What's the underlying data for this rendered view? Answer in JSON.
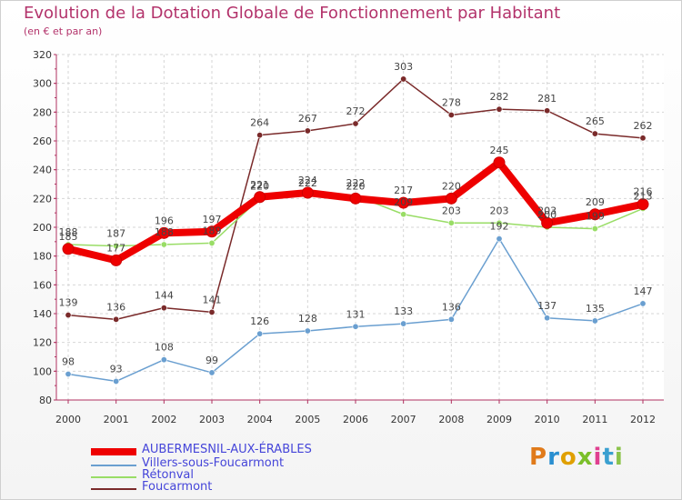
{
  "header": {
    "title": "Evolution de la Dotation Globale de Fonctionnement par Habitant",
    "subtitle": "(en € et par an)"
  },
  "brand": {
    "text": "Proxiti"
  },
  "chart_data": {
    "type": "line",
    "title": "Evolution de la Dotation Globale de Fonctionnement par Habitant",
    "subtitle": "(en € et par an)",
    "xlabel": "",
    "ylabel": "",
    "ylim": [
      80,
      320
    ],
    "y_ticks": [
      80,
      100,
      120,
      140,
      160,
      180,
      200,
      220,
      240,
      260,
      280,
      300,
      320
    ],
    "grid": true,
    "legend_position": "bottom-left",
    "categories": [
      "2000",
      "2001",
      "2002",
      "2003",
      "2004",
      "2005",
      "2006",
      "2007",
      "2008",
      "2009",
      "2010",
      "2011",
      "2012"
    ],
    "series": [
      {
        "name": "Foucarmont",
        "color": "#7a2a2a",
        "values": [
          139,
          136,
          144,
          141,
          264,
          267,
          272,
          303,
          278,
          282,
          281,
          265,
          262
        ]
      },
      {
        "name": "Villers-sous-Foucarmont",
        "color": "#6a9fd0",
        "values": [
          98,
          93,
          108,
          99,
          126,
          128,
          131,
          133,
          136,
          192,
          137,
          135,
          147
        ]
      },
      {
        "name": "Rétonval",
        "color": "#99dd66",
        "values": [
          188,
          187,
          188,
          189,
          220,
          222,
          222,
          209,
          203,
          203,
          200,
          199,
          213
        ]
      },
      {
        "name": "AUBERMESNIL-AUX-ÉRABLES",
        "color": "#ee0000",
        "values": [
          185,
          177,
          196,
          197,
          221,
          224,
          220,
          217,
          220,
          245,
          203,
          209,
          216
        ]
      }
    ]
  }
}
